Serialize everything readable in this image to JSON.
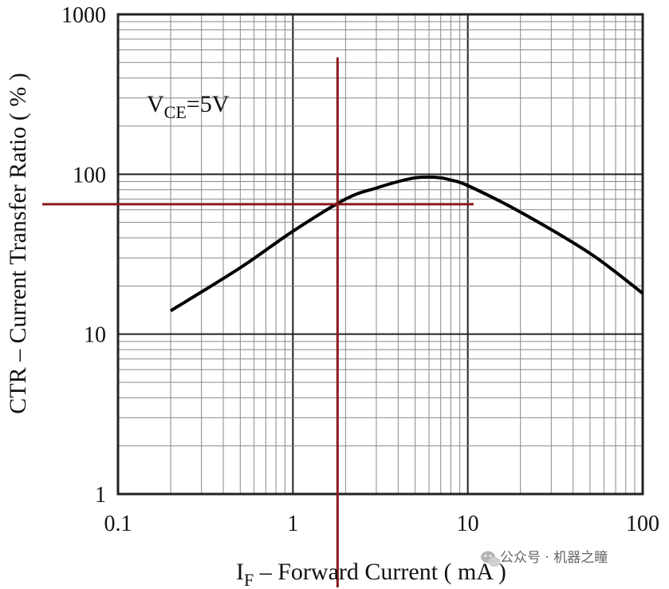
{
  "chart_data": {
    "type": "line",
    "title": "",
    "xlabel": {
      "main": "I",
      "sub": "F",
      "rest": " – Forward Current ( mA )"
    },
    "ylabel": "CTR – Current Transfer Ratio ( % )",
    "x_scale": "log",
    "y_scale": "log",
    "xlim": [
      0.1,
      100
    ],
    "ylim": [
      1,
      1000
    ],
    "x_ticks": [
      {
        "value": 0.1,
        "label": "0.1"
      },
      {
        "value": 1,
        "label": "1"
      },
      {
        "value": 10,
        "label": "10"
      },
      {
        "value": 100,
        "label": "100"
      }
    ],
    "y_ticks": [
      {
        "value": 1,
        "label": "1"
      },
      {
        "value": 10,
        "label": "10"
      },
      {
        "value": 100,
        "label": "100"
      },
      {
        "value": 1000,
        "label": "1000"
      }
    ],
    "grid": true,
    "annotation": {
      "main": "V",
      "sub": "CE",
      "rest": "=5V"
    },
    "series": [
      {
        "x": [
          0.2,
          0.5,
          1.0,
          2.0,
          3.0,
          4.0,
          5.0,
          6.0,
          7.0,
          8.0,
          10.0,
          20.0,
          50.0,
          100.0
        ],
        "y": [
          14,
          26,
          44,
          70,
          82,
          90,
          95,
          96,
          95,
          92,
          85,
          58,
          32,
          18
        ],
        "color": "#000000"
      }
    ],
    "reference_lines": {
      "x": 1.8,
      "y": 65,
      "color": "#8b1a1a"
    }
  },
  "watermark": {
    "text": "公众号 · 机器之瞳",
    "icon": "wechat-icon"
  }
}
